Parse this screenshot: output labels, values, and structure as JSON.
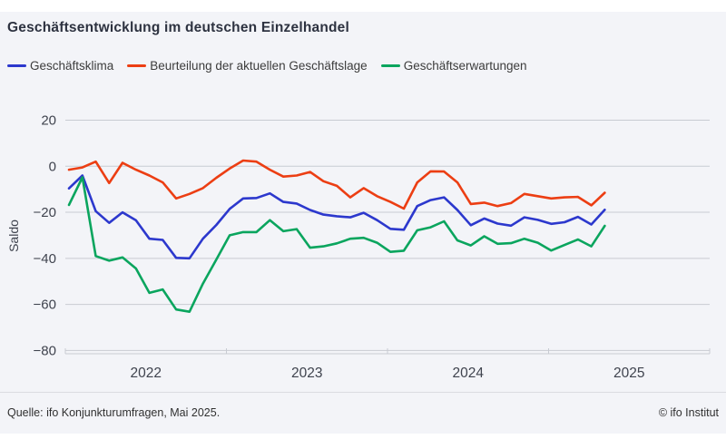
{
  "title": "Geschäftsentwicklung im deutschen Einzelhandel",
  "legend": [
    {
      "label": "Geschäftsklima",
      "color": "#2c38cd"
    },
    {
      "label": "Beurteilung der aktuellen Geschäftslage",
      "color": "#ec3e13"
    },
    {
      "label": "Geschäftserwartungen",
      "color": "#0aa55e"
    }
  ],
  "footer": {
    "source": "Quelle: ifo Konjunkturumfragen, Mai 2025.",
    "copyright": "© ifo Institut"
  },
  "chart_data": {
    "type": "line",
    "title": "Geschäftsentwicklung im deutschen Einzelhandel",
    "xlabel": "",
    "ylabel": "Saldo",
    "ylim": [
      -80,
      20
    ],
    "yticks": [
      20,
      0,
      -20,
      -40,
      -60,
      -80
    ],
    "year_ticks": [
      "2022",
      "2023",
      "2024",
      "2025"
    ],
    "grid": "horizontal",
    "legend_position": "top",
    "categories": [
      "2022-01",
      "2022-02",
      "2022-03",
      "2022-04",
      "2022-05",
      "2022-06",
      "2022-07",
      "2022-08",
      "2022-09",
      "2022-10",
      "2022-11",
      "2022-12",
      "2023-01",
      "2023-02",
      "2023-03",
      "2023-04",
      "2023-05",
      "2023-06",
      "2023-07",
      "2023-08",
      "2023-09",
      "2023-10",
      "2023-11",
      "2023-12",
      "2024-01",
      "2024-02",
      "2024-03",
      "2024-04",
      "2024-05",
      "2024-06",
      "2024-07",
      "2024-08",
      "2024-09",
      "2024-10",
      "2024-11",
      "2024-12",
      "2025-01",
      "2025-02",
      "2025-03",
      "2025-04",
      "2025-05"
    ],
    "series": [
      {
        "name": "Geschäftsklima",
        "color": "#2c38cd",
        "values": [
          -9.6,
          -4.0,
          -19.5,
          -24.6,
          -20.0,
          -23.5,
          -31.5,
          -32.0,
          -39.8,
          -40.0,
          -31.5,
          -25.5,
          -18.5,
          -14.0,
          -13.8,
          -11.8,
          -15.5,
          -16.2,
          -19.0,
          -21.0,
          -21.7,
          -22.2,
          -20.2,
          -23.4,
          -27.2,
          -27.6,
          -17.3,
          -14.7,
          -13.5,
          -19.0,
          -25.6,
          -22.7,
          -24.9,
          -25.8,
          -22.2,
          -23.3,
          -25.0,
          -24.3,
          -22.0,
          -25.3,
          -18.9
        ]
      },
      {
        "name": "Beurteilung der aktuellen Geschäftslage",
        "color": "#ec3e13",
        "values": [
          -1.5,
          -0.5,
          2.0,
          -7.3,
          1.5,
          -1.5,
          -4.0,
          -7.0,
          -14.0,
          -12.0,
          -9.5,
          -5.0,
          -1.0,
          2.5,
          2.0,
          -1.5,
          -4.5,
          -4.0,
          -2.5,
          -6.5,
          -8.5,
          -13.5,
          -9.5,
          -13.0,
          -15.5,
          -18.4,
          -7.0,
          -2.2,
          -2.3,
          -7.0,
          -16.4,
          -15.8,
          -17.3,
          -16.0,
          -12.0,
          -13.0,
          -14.0,
          -13.5,
          -13.3,
          -17.0,
          -11.5
        ]
      },
      {
        "name": "Geschäftserwartungen",
        "color": "#0aa55e",
        "values": [
          -16.8,
          -4.8,
          -39.0,
          -41.0,
          -39.6,
          -44.4,
          -55.0,
          -53.5,
          -62.2,
          -63.2,
          -51.0,
          -40.5,
          -30.0,
          -28.6,
          -28.6,
          -23.4,
          -28.2,
          -27.3,
          -35.4,
          -34.8,
          -33.5,
          -31.5,
          -31.1,
          -33.2,
          -37.2,
          -36.7,
          -27.8,
          -26.5,
          -23.9,
          -32.2,
          -34.4,
          -30.4,
          -33.7,
          -33.4,
          -31.5,
          -33.2,
          -36.6,
          -34.2,
          -31.8,
          -34.8,
          -25.9
        ]
      }
    ]
  }
}
